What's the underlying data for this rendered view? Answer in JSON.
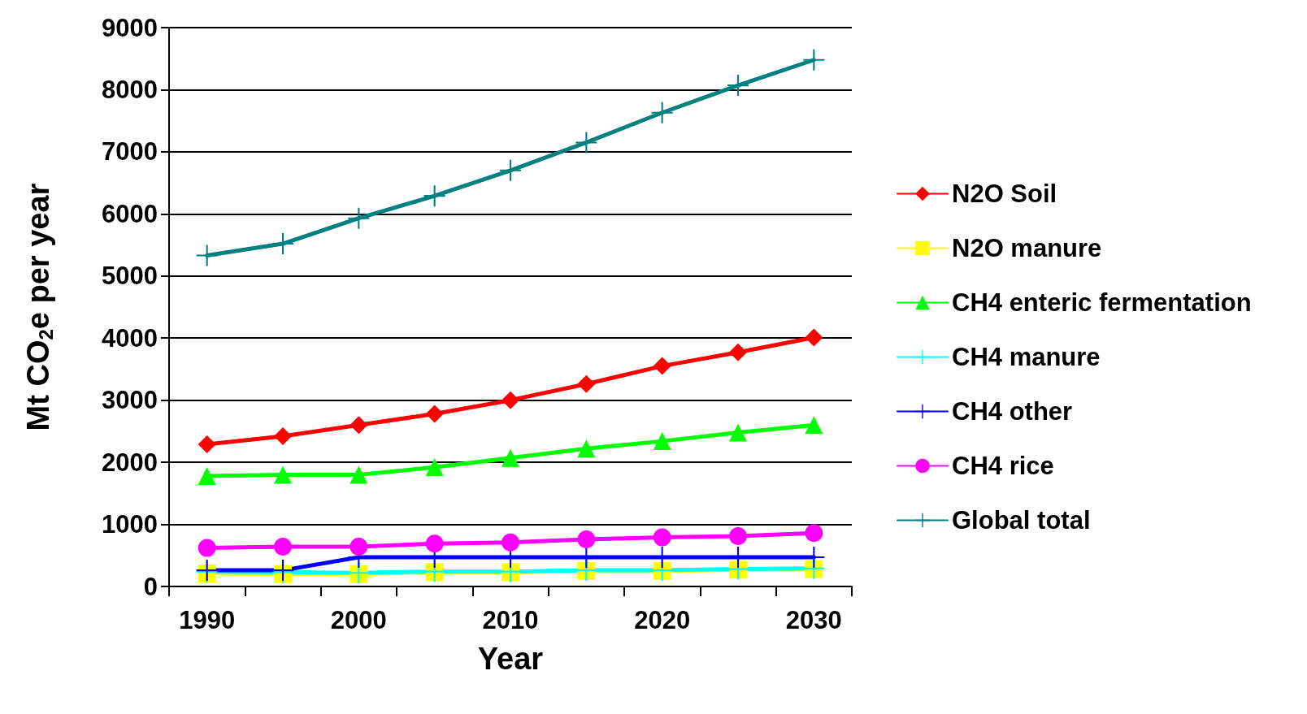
{
  "chart_data": {
    "type": "line",
    "xlabel": "Year",
    "ylabel": "Mt CO$_{2}$e per year",
    "categories": [
      "1990",
      null,
      "2000",
      null,
      "2010",
      null,
      "2020",
      null,
      "2030"
    ],
    "ylim": [
      0,
      9000
    ],
    "yticks": [
      0,
      1000,
      2000,
      3000,
      4000,
      5000,
      6000,
      7000,
      8000,
      9000
    ],
    "grid": "y",
    "legend": "right",
    "line_style": "solid",
    "series": [
      {
        "name": "N2O Soil",
        "color": "#ff0000",
        "marker": "diamond",
        "values": [
          2290,
          2420,
          2600,
          2780,
          3000,
          3260,
          3550,
          3770,
          4010
        ]
      },
      {
        "name": "N2O manure",
        "color": "#ffff00",
        "marker": "square",
        "values": [
          210,
          200,
          200,
          230,
          230,
          250,
          250,
          270,
          280
        ]
      },
      {
        "name": "CH4 enteric fermentation",
        "color": "#00ff00",
        "marker": "triangle",
        "values": [
          1780,
          1800,
          1800,
          1920,
          2070,
          2220,
          2340,
          2480,
          2600
        ]
      },
      {
        "name": "CH4 manure",
        "color": "#00ffff",
        "marker": "cross",
        "values": [
          240,
          230,
          220,
          240,
          240,
          260,
          260,
          280,
          290
        ]
      },
      {
        "name": "CH4 other",
        "color": "#0000ff",
        "marker": "cross",
        "values": [
          260,
          260,
          470,
          470,
          470,
          470,
          470,
          470,
          470
        ]
      },
      {
        "name": "CH4 rice",
        "color": "#ff00ff",
        "marker": "circle",
        "values": [
          620,
          640,
          640,
          690,
          710,
          760,
          790,
          810,
          860
        ]
      },
      {
        "name": "Global total",
        "color": "#008080",
        "marker": "cross",
        "values": [
          5330,
          5520,
          5930,
          6290,
          6700,
          7150,
          7630,
          8070,
          8480
        ]
      }
    ]
  }
}
